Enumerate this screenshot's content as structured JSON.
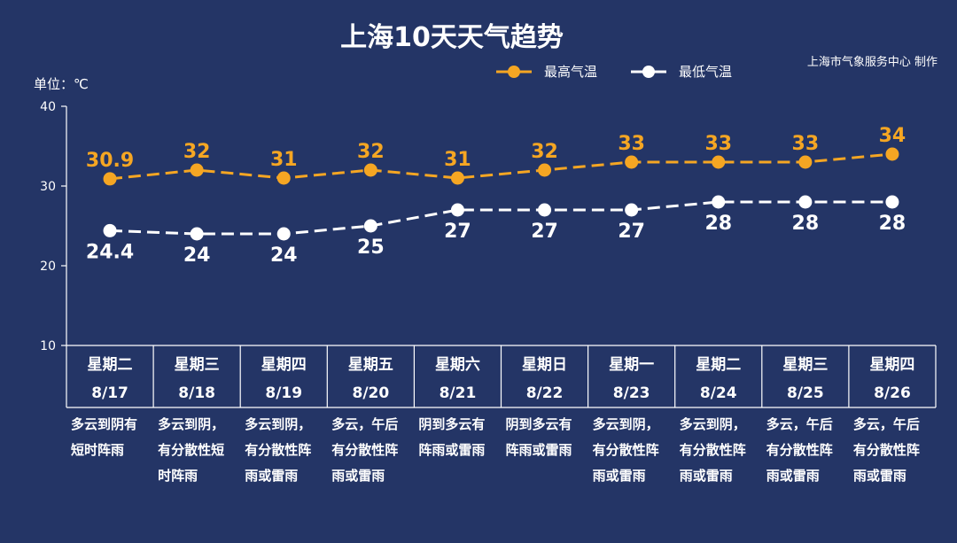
{
  "header": {
    "title": "上海10天天气趋势",
    "credit": "上海市气象服务中心 制作",
    "unit_label": "单位：℃"
  },
  "colors": {
    "background": "#243566",
    "high": "#f5a623",
    "low": "#ffffff"
  },
  "chart_data": {
    "type": "line",
    "title": "上海10天天气趋势",
    "ylabel": "单位：℃",
    "ylim": [
      10,
      40
    ],
    "yticks": [
      10,
      20,
      30,
      40
    ],
    "grid": false,
    "legend": "top-right",
    "categories": [
      {
        "weekday": "星期二",
        "date": "8/17",
        "weather": [
          "多云到阴有",
          "短时阵雨"
        ]
      },
      {
        "weekday": "星期三",
        "date": "8/18",
        "weather": [
          "多云到阴，",
          "有分散性短",
          "时阵雨"
        ]
      },
      {
        "weekday": "星期四",
        "date": "8/19",
        "weather": [
          "多云到阴，",
          "有分散性阵",
          "雨或雷雨"
        ]
      },
      {
        "weekday": "星期五",
        "date": "8/20",
        "weather": [
          "多云，午后",
          "有分散性阵",
          "雨或雷雨"
        ]
      },
      {
        "weekday": "星期六",
        "date": "8/21",
        "weather": [
          "阴到多云有",
          "阵雨或雷雨"
        ]
      },
      {
        "weekday": "星期日",
        "date": "8/22",
        "weather": [
          "阴到多云有",
          "阵雨或雷雨"
        ]
      },
      {
        "weekday": "星期一",
        "date": "8/23",
        "weather": [
          "多云到阴，",
          "有分散性阵",
          "雨或雷雨"
        ]
      },
      {
        "weekday": "星期二",
        "date": "8/24",
        "weather": [
          "多云到阴，",
          "有分散性阵",
          "雨或雷雨"
        ]
      },
      {
        "weekday": "星期三",
        "date": "8/25",
        "weather": [
          "多云，午后",
          "有分散性阵",
          "雨或雷雨"
        ]
      },
      {
        "weekday": "星期四",
        "date": "8/26",
        "weather": [
          "多云，午后",
          "有分散性阵",
          "雨或雷雨"
        ]
      }
    ],
    "series": [
      {
        "name": "最高气温",
        "values": [
          30.9,
          32,
          31,
          32,
          31,
          32,
          33,
          33,
          33,
          34
        ],
        "labels": [
          "30.9",
          "32",
          "31",
          "32",
          "31",
          "32",
          "33",
          "33",
          "33",
          "34"
        ]
      },
      {
        "name": "最低气温",
        "values": [
          24.4,
          24,
          24,
          25,
          27,
          27,
          27,
          28,
          28,
          28
        ],
        "labels": [
          "24.4",
          "24",
          "24",
          "25",
          "27",
          "27",
          "27",
          "28",
          "28",
          "28"
        ]
      }
    ]
  }
}
